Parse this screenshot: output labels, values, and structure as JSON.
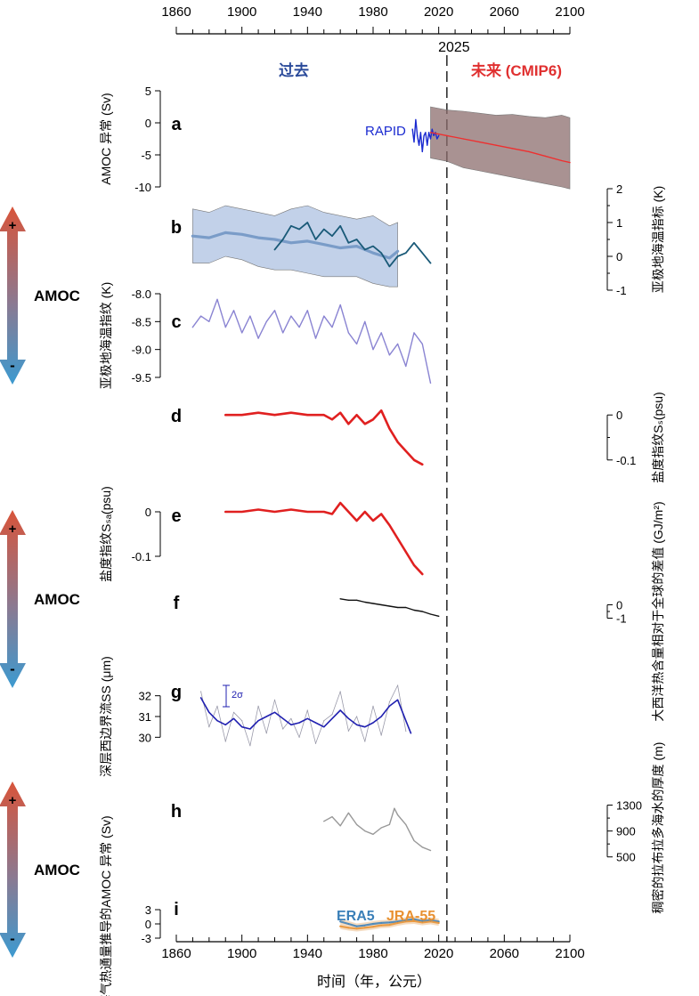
{
  "chart_data": {
    "type": "line",
    "x_axis": {
      "label": "时间（年，公元）",
      "range": [
        1860,
        2100
      ],
      "ticks": [
        "1860",
        "1900",
        "1940",
        "1980",
        "2020",
        "2060",
        "2100"
      ],
      "tick_values": [
        1860,
        1900,
        1940,
        1980,
        2020,
        2060,
        2100
      ]
    },
    "divider": {
      "year": 2025,
      "label": "2025"
    },
    "header": {
      "past": "过去",
      "future": "未来 (CMIP6)",
      "past_color": "#2a4a9a",
      "future_color": "#e03030"
    },
    "amoc_arrows": [
      {
        "label": "AMOC",
        "plus": "+",
        "minus": "-"
      },
      {
        "label": "AMOC",
        "plus": "+",
        "minus": "-"
      },
      {
        "label": "AMOC",
        "plus": "+",
        "minus": "-"
      }
    ],
    "panels": [
      {
        "id": "a",
        "letter": "a",
        "ylabel": "AMOC 异常 (Sv)",
        "ylim": [
          -10,
          5
        ],
        "ticks": [
          "5",
          "0",
          "-5",
          "-10"
        ],
        "tick_values": [
          5,
          0,
          -5,
          -10
        ],
        "annotation": "RAPID",
        "series": [
          {
            "name": "RAPID",
            "color": "#1a2ad0",
            "x": [
              2004,
              2005,
              2006,
              2007,
              2008,
              2009,
              2010,
              2011,
              2012,
              2013,
              2014,
              2015,
              2016,
              2017,
              2018,
              2019,
              2020
            ],
            "y": [
              -1,
              -3,
              0.5,
              -2,
              -3.5,
              -1.5,
              -4.5,
              -2,
              -1.5,
              -3.5,
              -1.5,
              -2.5,
              -1,
              -2,
              -1.5,
              -2.5,
              -2
            ]
          },
          {
            "name": "CMIP6 mean",
            "color": "#ee3030",
            "x": [
              2015,
              2025,
              2035,
              2045,
              2055,
              2065,
              2075,
              2085,
              2095,
              2100
            ],
            "y": [
              -1.5,
              -2,
              -2.5,
              -3,
              -3.5,
              -4,
              -4.5,
              -5.2,
              -5.9,
              -6.2
            ]
          }
        ],
        "band": {
          "name": "CMIP6 range",
          "color": "#8c6e6e",
          "x": [
            2015,
            2025,
            2035,
            2045,
            2055,
            2065,
            2075,
            2085,
            2095,
            2100
          ],
          "upper": [
            2.5,
            2,
            1.8,
            1.5,
            1.2,
            1.3,
            1,
            0.8,
            1.2,
            0.8
          ],
          "lower": [
            -5.5,
            -6,
            -7,
            -7.5,
            -8,
            -8.5,
            -9,
            -9.5,
            -10,
            -10.3
          ]
        }
      },
      {
        "id": "b",
        "letter": "b",
        "ylabel": "亚极地海温指标 (K)",
        "ylim": [
          -1,
          2
        ],
        "ticks": [
          "2",
          "1",
          "0",
          "-1"
        ],
        "tick_values": [
          2,
          1,
          0,
          -1
        ],
        "series": [
          {
            "name": "proxy mean",
            "color": "#7a9cc8",
            "x": [
              1870,
              1880,
              1890,
              1900,
              1910,
              1920,
              1930,
              1940,
              1950,
              1960,
              1970,
              1980,
              1990,
              1995
            ],
            "y": [
              0.6,
              0.55,
              0.7,
              0.65,
              0.55,
              0.5,
              0.4,
              0.45,
              0.35,
              0.25,
              0.3,
              0.1,
              -0.05,
              0.15
            ]
          },
          {
            "name": "instrumental",
            "color": "#1a5a78",
            "x": [
              1920,
              1925,
              1930,
              1935,
              1940,
              1945,
              1950,
              1955,
              1960,
              1965,
              1970,
              1975,
              1980,
              1985,
              1990,
              1995,
              2000,
              2005,
              2010,
              2015
            ],
            "y": [
              0.2,
              0.5,
              0.9,
              0.8,
              1.0,
              0.5,
              0.8,
              0.6,
              0.9,
              0.4,
              0.5,
              0.2,
              0.3,
              0.1,
              -0.3,
              0.0,
              0.1,
              0.4,
              0.1,
              -0.2
            ]
          }
        ],
        "band": {
          "name": "uncertainty",
          "color": "#aec2e2",
          "x": [
            1870,
            1880,
            1890,
            1900,
            1910,
            1920,
            1930,
            1940,
            1950,
            1960,
            1970,
            1980,
            1990,
            1995
          ],
          "upper": [
            1.4,
            1.3,
            1.5,
            1.4,
            1.3,
            1.2,
            1.4,
            1.5,
            1.3,
            1.2,
            1.1,
            1.2,
            0.9,
            1.0
          ],
          "lower": [
            -0.2,
            -0.2,
            0.0,
            -0.1,
            -0.3,
            -0.4,
            -0.4,
            -0.5,
            -0.6,
            -0.6,
            -0.6,
            -0.8,
            -0.9,
            -0.9
          ]
        }
      },
      {
        "id": "c",
        "letter": "c",
        "ylabel": "亚极地海温指纹 (K)",
        "ylim": [
          -9.5,
          -8.0
        ],
        "ticks": [
          "-8.0",
          "-8.5",
          "-9.0",
          "-9.5"
        ],
        "tick_values": [
          -8.0,
          -8.5,
          -9.0,
          -9.5
        ],
        "series": [
          {
            "name": "SST fingerprint",
            "color": "#8a84d2",
            "x": [
              1870,
              1875,
              1880,
              1885,
              1890,
              1895,
              1900,
              1905,
              1910,
              1915,
              1920,
              1925,
              1930,
              1935,
              1940,
              1945,
              1950,
              1955,
              1960,
              1965,
              1970,
              1975,
              1980,
              1985,
              1990,
              1995,
              2000,
              2005,
              2010,
              2015
            ],
            "y": [
              -8.6,
              -8.4,
              -8.5,
              -8.1,
              -8.6,
              -8.3,
              -8.7,
              -8.4,
              -8.8,
              -8.5,
              -8.3,
              -8.7,
              -8.4,
              -8.6,
              -8.3,
              -8.8,
              -8.4,
              -8.6,
              -8.2,
              -8.7,
              -8.9,
              -8.5,
              -9.0,
              -8.7,
              -9.1,
              -8.9,
              -9.3,
              -8.7,
              -8.9,
              -9.6
            ]
          }
        ]
      },
      {
        "id": "d",
        "letter": "d",
        "ylabel": "盐度指纹Sₛ(psu)",
        "ylim": [
          -0.14,
          0.04
        ],
        "ticks": [
          "0",
          "-0.1"
        ],
        "tick_values": [
          0,
          -0.1
        ],
        "series": [
          {
            "name": "salinity fingerprint Ss",
            "color": "#e02020",
            "x": [
              1890,
              1900,
              1910,
              1920,
              1930,
              1940,
              1950,
              1955,
              1960,
              1965,
              1970,
              1975,
              1980,
              1985,
              1990,
              1995,
              2000,
              2005,
              2010
            ],
            "y": [
              0.0,
              0.0,
              0.005,
              0.0,
              0.005,
              0.0,
              0.0,
              -0.01,
              0.005,
              -0.02,
              0.0,
              -0.02,
              -0.01,
              0.01,
              -0.03,
              -0.06,
              -0.08,
              -0.1,
              -0.11
            ]
          }
        ]
      },
      {
        "id": "e",
        "letter": "e",
        "ylabel": "盐度指纹Sₛₐ(psu)",
        "ylim": [
          -0.15,
          0.05
        ],
        "ticks": [
          "0",
          "-0.1"
        ],
        "tick_values": [
          0,
          -0.1
        ],
        "series": [
          {
            "name": "salinity fingerprint SsA",
            "color": "#e02020",
            "x": [
              1890,
              1900,
              1910,
              1920,
              1930,
              1940,
              1950,
              1955,
              1960,
              1965,
              1970,
              1975,
              1980,
              1985,
              1990,
              1995,
              2000,
              2005,
              2010
            ],
            "y": [
              0.0,
              0.0,
              0.005,
              0.0,
              0.005,
              0.0,
              0.0,
              -0.005,
              0.02,
              0.0,
              -0.02,
              0.0,
              -0.02,
              -0.005,
              -0.03,
              -0.06,
              -0.09,
              -0.12,
              -0.14
            ]
          }
        ]
      },
      {
        "id": "f",
        "letter": "f",
        "ylabel": "大西洋热含量相对于全球的差值 (GJ/m²)",
        "ylim": [
          -1.5,
          0.5
        ],
        "ticks": [
          "0",
          "-1"
        ],
        "tick_values": [
          0,
          -1
        ],
        "series": [
          {
            "name": "Atlantic heat content minus global",
            "color": "#111111",
            "x": [
              1960,
              1965,
              1970,
              1975,
              1980,
              1985,
              1990,
              1995,
              2000,
              2005,
              2010,
              2015,
              2020
            ],
            "y": [
              0.45,
              0.35,
              0.35,
              0.2,
              0.1,
              0.0,
              -0.1,
              -0.2,
              -0.2,
              -0.4,
              -0.5,
              -0.7,
              -0.85
            ]
          }
        ]
      },
      {
        "id": "g",
        "letter": "g",
        "ylabel": "深层西边界流SS (μm)",
        "ylim": [
          29.5,
          32.5
        ],
        "ticks": [
          "32",
          "31",
          "30"
        ],
        "tick_values": [
          32,
          31,
          30
        ],
        "annotation": "2σ",
        "series": [
          {
            "name": "sortable silt raw",
            "color": "#9a9aaa",
            "x": [
              1875,
              1880,
              1885,
              1890,
              1895,
              1900,
              1905,
              1910,
              1915,
              1920,
              1925,
              1930,
              1935,
              1940,
              1945,
              1950,
              1955,
              1960,
              1965,
              1970,
              1975,
              1980,
              1985,
              1990,
              1995,
              2000
            ],
            "y": [
              32.2,
              30.5,
              31.5,
              29.8,
              31.2,
              30.8,
              29.6,
              31.5,
              30.2,
              31.8,
              30.4,
              30.9,
              30.0,
              31.3,
              29.7,
              30.8,
              31.1,
              32.2,
              30.3,
              31.0,
              29.8,
              31.5,
              30.1,
              31.7,
              32.5,
              30.3
            ]
          },
          {
            "name": "sortable silt smoothed",
            "color": "#2020b0",
            "x": [
              1875,
              1880,
              1885,
              1890,
              1895,
              1900,
              1905,
              1910,
              1915,
              1920,
              1925,
              1930,
              1935,
              1940,
              1945,
              1950,
              1955,
              1960,
              1965,
              1970,
              1975,
              1980,
              1985,
              1990,
              1995,
              2000,
              2003
            ],
            "y": [
              31.9,
              31.2,
              30.8,
              30.6,
              30.9,
              30.5,
              30.4,
              30.8,
              31.0,
              31.2,
              30.9,
              30.6,
              30.7,
              30.9,
              30.7,
              30.5,
              30.9,
              31.3,
              30.9,
              30.6,
              30.5,
              30.7,
              31.0,
              31.5,
              31.8,
              30.8,
              30.2
            ]
          }
        ]
      },
      {
        "id": "h",
        "letter": "h",
        "ylabel": "稠密的拉布拉多海水的厚度 (m)",
        "ylim": [
          400,
          1500
        ],
        "ticks": [
          "1300",
          "900",
          "500"
        ],
        "tick_values": [
          1300,
          900,
          500
        ],
        "series": [
          {
            "name": "LSW thickness",
            "color": "#999999",
            "x": [
              1950,
              1955,
              1960,
              1965,
              1970,
              1975,
              1980,
              1985,
              1990,
              1993,
              1995,
              2000,
              2005,
              2010,
              2015
            ],
            "y": [
              1050,
              1120,
              980,
              1180,
              1000,
              900,
              850,
              950,
              1000,
              1250,
              1150,
              1000,
              750,
              650,
              600
            ]
          }
        ]
      },
      {
        "id": "i",
        "letter": "i",
        "ylabel": "基于海气热通量推导的AMOC 异常 (Sv)",
        "ylim": [
          -3,
          3
        ],
        "ticks": [
          "3",
          "0",
          "-3"
        ],
        "tick_values": [
          3,
          0,
          -3
        ],
        "legend": [
          "ERA5",
          "JRA-55"
        ],
        "legend_colors": [
          "#3a7fb8",
          "#e89030"
        ],
        "series": [
          {
            "name": "ERA5",
            "color": "#3a7fb8",
            "x": [
              1960,
              1965,
              1970,
              1975,
              1980,
              1985,
              1990,
              1995,
              2000,
              2005,
              2010,
              2015,
              2020
            ],
            "y": [
              0.5,
              0.0,
              -0.5,
              -0.3,
              0.0,
              0.2,
              0.3,
              0.5,
              0.8,
              1.0,
              0.6,
              0.8,
              0.5
            ]
          },
          {
            "name": "JRA-55",
            "color": "#e89030",
            "x": [
              1960,
              1965,
              1970,
              1975,
              1980,
              1985,
              1990,
              1995,
              2000,
              2005,
              2010,
              2015,
              2020
            ],
            "y": [
              -0.5,
              -0.8,
              -1.0,
              -0.8,
              -0.6,
              -0.3,
              -0.2,
              0.2,
              0.5,
              0.6,
              0.3,
              0.5,
              0.2
            ]
          }
        ]
      }
    ]
  }
}
